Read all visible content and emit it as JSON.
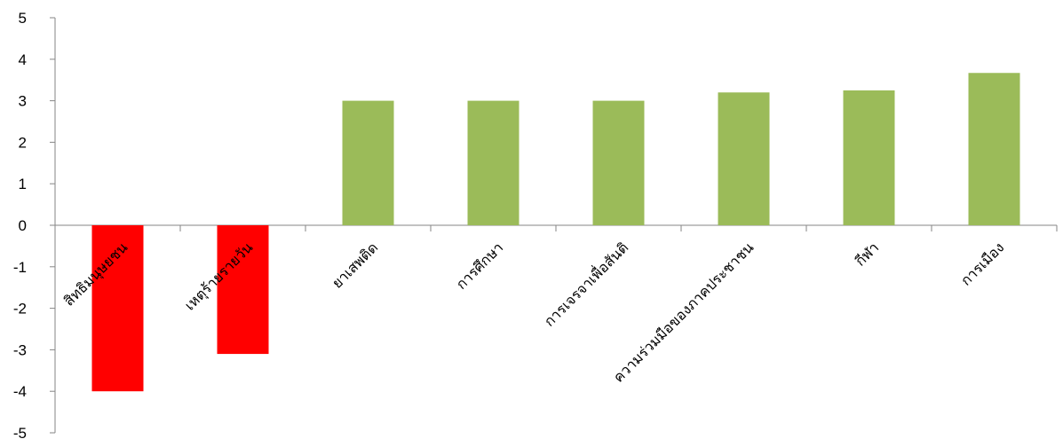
{
  "chart_data": {
    "type": "bar",
    "categories": [
      "สิทธิมนุษยชน",
      "เหตุร้ายรายวัน",
      "ยาเสพติด",
      "การศึกษา",
      "การเจรจาเพื่อสันติ",
      "ความร่วมมือของภาคประชาชน",
      "กีฬา",
      "การเมือง"
    ],
    "values": [
      -4.0,
      -3.1,
      3.0,
      3.0,
      3.0,
      3.2,
      3.25,
      3.67
    ],
    "ylim": [
      -5,
      5
    ],
    "yticks": [
      "5",
      "4",
      "3",
      "2",
      "1",
      "0",
      "-1",
      "-2",
      "-3",
      "-4",
      "-5"
    ],
    "colors": {
      "positive": "#9bbb59",
      "negative": "#ff0000",
      "axis": "#868686"
    },
    "grid": false,
    "legend": "none",
    "title": "",
    "xlabel": "",
    "ylabel": ""
  }
}
